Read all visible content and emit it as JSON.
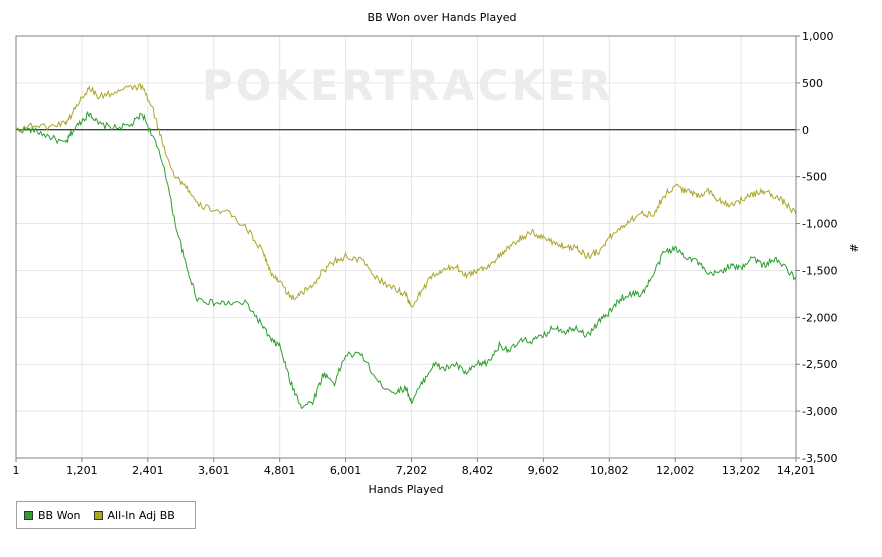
{
  "chart_data": {
    "type": "line",
    "title": "BB Won over Hands Played",
    "xlabel": "Hands Played",
    "ylabel": "#",
    "watermark": "POKERTRACKER",
    "xlim": [
      1,
      14201
    ],
    "ylim": [
      -3500,
      1000
    ],
    "x_ticks": [
      "1",
      "1,201",
      "2,401",
      "3,601",
      "4,801",
      "6,001",
      "7,202",
      "8,402",
      "9,602",
      "10,802",
      "12,002",
      "13,202",
      "14,201"
    ],
    "y_ticks": [
      "1,000",
      "500",
      "0",
      "-500",
      "-1,000",
      "-1,500",
      "-2,000",
      "-2,500",
      "-3,000",
      "-3,500"
    ],
    "grid": true,
    "legend_position": "bottom-left",
    "colors": {
      "bb_won": "#2e9e2e",
      "allin": "#aaa62a",
      "zero_line": "#000000",
      "grid": "#e6e6e6"
    },
    "x": [
      1,
      300,
      600,
      900,
      1000,
      1200,
      1350,
      1500,
      1800,
      2100,
      2300,
      2500,
      2700,
      2900,
      3100,
      3300,
      3600,
      3900,
      4200,
      4500,
      4650,
      4800,
      5000,
      5200,
      5400,
      5600,
      5800,
      6000,
      6300,
      6600,
      6900,
      7100,
      7200,
      7400,
      7600,
      7800,
      8000,
      8200,
      8400,
      8600,
      8800,
      9000,
      9200,
      9400,
      9600,
      9800,
      10000,
      10200,
      10400,
      10600,
      10800,
      11000,
      11200,
      11400,
      11600,
      11800,
      12000,
      12200,
      12400,
      12600,
      12800,
      13000,
      13200,
      13400,
      13600,
      13800,
      14000,
      14201
    ],
    "series": [
      {
        "name": "BB Won",
        "values": [
          0,
          0,
          -70,
          -150,
          -40,
          100,
          180,
          60,
          20,
          50,
          170,
          -80,
          -400,
          -1000,
          -1450,
          -1800,
          -1850,
          -1850,
          -1850,
          -2100,
          -2250,
          -2300,
          -2700,
          -2950,
          -2900,
          -2600,
          -2700,
          -2400,
          -2400,
          -2700,
          -2800,
          -2750,
          -2900,
          -2700,
          -2500,
          -2550,
          -2500,
          -2600,
          -2500,
          -2480,
          -2300,
          -2350,
          -2250,
          -2250,
          -2200,
          -2100,
          -2150,
          -2100,
          -2200,
          -2050,
          -1950,
          -1800,
          -1750,
          -1750,
          -1550,
          -1300,
          -1270,
          -1350,
          -1400,
          -1550,
          -1520,
          -1450,
          -1480,
          -1350,
          -1450,
          -1380,
          -1460,
          -1600
        ]
      },
      {
        "name": "All-In Adj BB",
        "values": [
          0,
          50,
          30,
          80,
          150,
          350,
          450,
          350,
          400,
          450,
          460,
          200,
          -200,
          -500,
          -600,
          -800,
          -850,
          -900,
          -1050,
          -1300,
          -1550,
          -1600,
          -1800,
          -1750,
          -1650,
          -1500,
          -1400,
          -1350,
          -1400,
          -1600,
          -1700,
          -1750,
          -1900,
          -1700,
          -1550,
          -1500,
          -1450,
          -1550,
          -1500,
          -1450,
          -1350,
          -1250,
          -1150,
          -1100,
          -1150,
          -1200,
          -1250,
          -1250,
          -1350,
          -1300,
          -1150,
          -1050,
          -950,
          -900,
          -900,
          -700,
          -600,
          -650,
          -700,
          -650,
          -750,
          -800,
          -750,
          -700,
          -650,
          -700,
          -780,
          -900
        ]
      }
    ]
  }
}
